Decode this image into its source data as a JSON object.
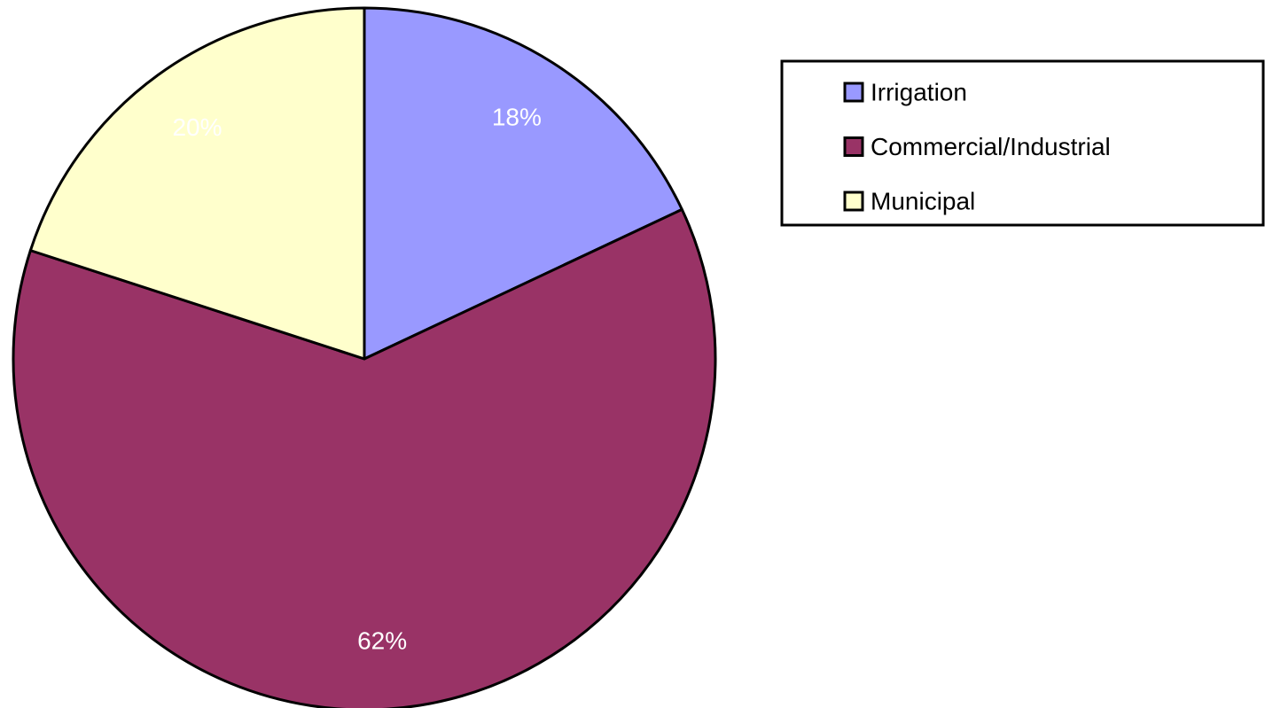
{
  "chart_data": {
    "type": "pie",
    "categories": [
      "Irrigation",
      "Commercial/Industrial",
      "Municipal"
    ],
    "values": [
      18,
      62,
      20
    ],
    "value_labels": [
      "18%",
      "62%",
      "20%"
    ],
    "colors": [
      "#9999ff",
      "#993366",
      "#ffffcc"
    ],
    "legend": "right"
  }
}
